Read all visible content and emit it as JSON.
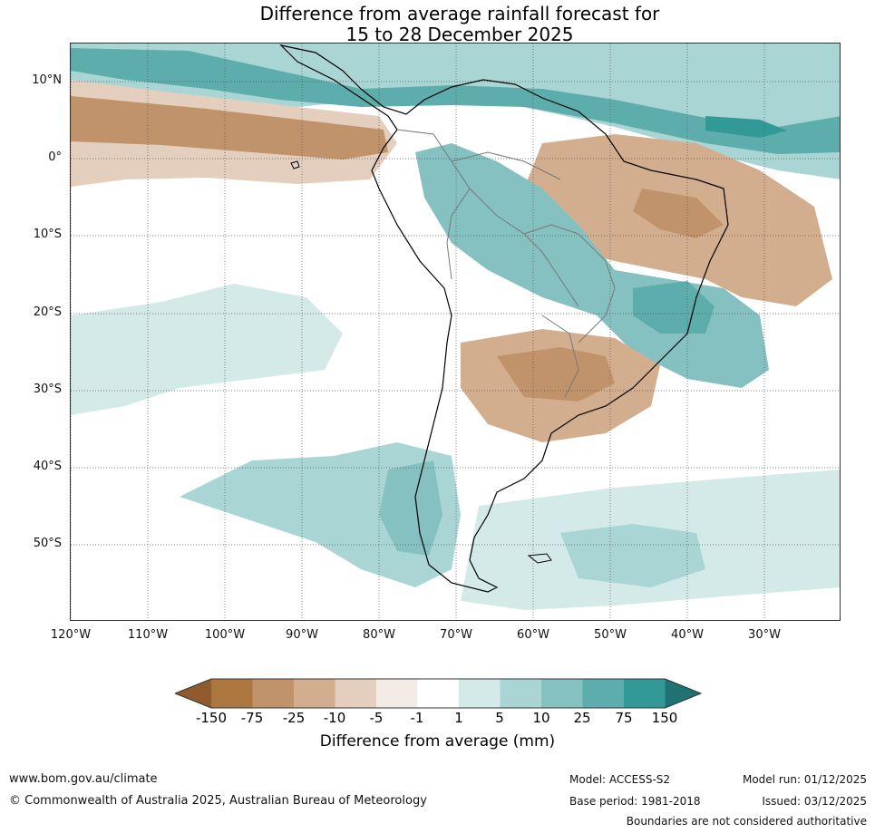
{
  "title": {
    "line1": "Difference from average rainfall forecast for",
    "line2": "15 to 28 December 2025"
  },
  "map": {
    "region": "South America and surrounding oceans",
    "lat_labels": [
      "10°N",
      "0°",
      "10°S",
      "20°S",
      "30°S",
      "40°S",
      "50°S"
    ],
    "lon_labels": [
      "120°W",
      "110°W",
      "100°W",
      "90°W",
      "80°W",
      "70°W",
      "60°W",
      "50°W",
      "40°W",
      "30°W"
    ]
  },
  "legend": {
    "title": "Difference from average (mm)",
    "ticks": [
      "-150",
      "-75",
      "-25",
      "-10",
      "-5",
      "-1",
      "1",
      "5",
      "10",
      "25",
      "75",
      "150"
    ],
    "colors": [
      "#8f5a2c",
      "#ad7840",
      "#c1936b",
      "#d3ae8e",
      "#e4cfbf",
      "#f3ebe6",
      "#ffffff",
      "#d4eae8",
      "#a9d6d5",
      "#84c1c0",
      "#5dadac",
      "#339997",
      "#1f7372"
    ]
  },
  "footer": {
    "website": "www.bom.gov.au/climate",
    "copyright": "© Commonwealth of Australia 2025, Australian Bureau of Meteorology",
    "model": "Model: ACCESS-S2",
    "base_period": "Base period: 1981-2018",
    "model_run": "Model run: 01/12/2025",
    "issued": "Issued: 03/12/2025",
    "disclaimer": "Boundaries are not considered authoritative"
  }
}
